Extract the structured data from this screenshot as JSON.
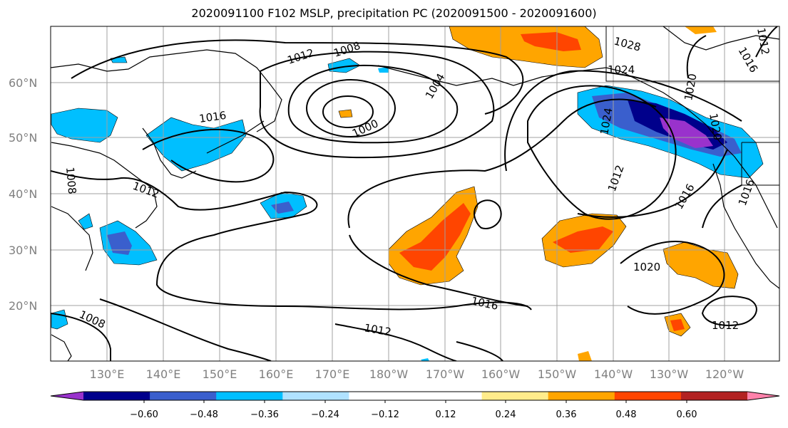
{
  "title": "2020091100 F102 MSLP, precipitation PC (2020091500 - 2020091600)",
  "lat_labels": [
    "60°N",
    "50°N",
    "40°N",
    "30°N",
    "20°N"
  ],
  "lon_labels": [
    "130°E",
    "140°E",
    "150°E",
    "160°E",
    "170°E",
    "180°W",
    "170°W",
    "160°W",
    "150°W",
    "140°W",
    "130°W",
    "120°W"
  ],
  "colorbar": {
    "colors": [
      "#9932cc",
      "#00008b",
      "#3a5fcd",
      "#00bfff",
      "#b0e2ff",
      "#ffffff",
      "#ffffff",
      "#ffec8b",
      "#ffa500",
      "#ff4500",
      "#b22222",
      "#ff82ab"
    ],
    "ticks": [
      "−0.60",
      "−0.48",
      "−0.36",
      "−0.24",
      "−0.12",
      "0.12",
      "0.24",
      "0.36",
      "0.48",
      "0.60"
    ]
  },
  "contour_labels": [
    "1012",
    "1008",
    "1004",
    "1000",
    "1016",
    "1024",
    "1028",
    "1020",
    "1012",
    "1016",
    "1008",
    "1012",
    "1016",
    "1012",
    "1020",
    "1012",
    "1016",
    "1008",
    "1024",
    "1020",
    "1012",
    "1016"
  ]
}
